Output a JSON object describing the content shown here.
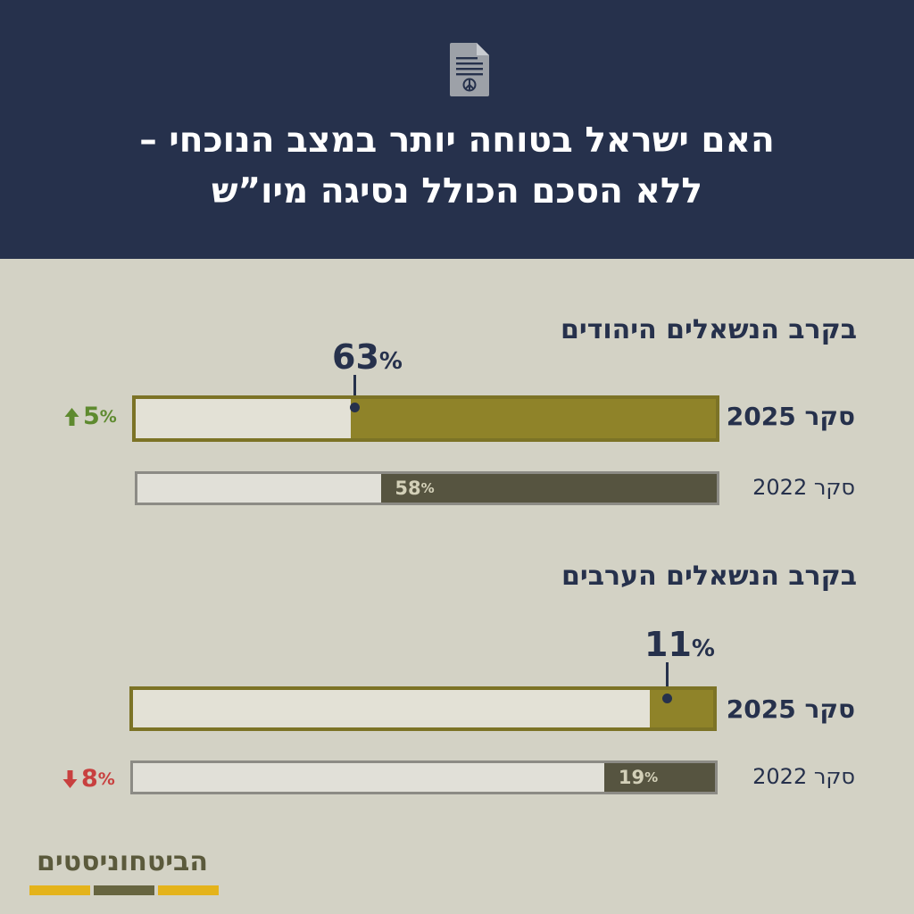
{
  "header": {
    "icon": "peace-document-icon",
    "title_line_1": "האם ישראל בטוחה יותר במצב הנוכחי –",
    "title_line_2": "ללא הסכם הכולל נסיגה מיו”ש"
  },
  "chart_data": [
    {
      "type": "bar",
      "title": "בקרב הנשאלים היהודים",
      "categories": [
        "סקר 2025",
        "סקר 2022"
      ],
      "values": [
        63,
        58
      ],
      "value_labels": [
        "63",
        "58"
      ],
      "unit": "%",
      "change": {
        "direction": "up",
        "value": 5,
        "label": "5",
        "unit": "%",
        "color": "#5e8a2f"
      },
      "xlim": [
        0,
        100
      ]
    },
    {
      "type": "bar",
      "title": "בקרב הנשאלים הערבים",
      "categories": [
        "סקר 2025",
        "סקר 2022"
      ],
      "values": [
        11,
        19
      ],
      "value_labels": [
        "11",
        "19"
      ],
      "unit": "%",
      "change": {
        "direction": "down",
        "value": 8,
        "label": "8",
        "unit": "%",
        "color": "#c8403f"
      },
      "xlim": [
        0,
        100
      ]
    }
  ],
  "logo": {
    "text": "הביטחוניסטים",
    "stripe_colors": [
      "#e4b31b",
      "#676540",
      "#e4b31b"
    ]
  },
  "colors": {
    "header_bg": "#26314c",
    "page_bg": "#d3d2c5",
    "fill_2025": "#8f8329",
    "fill_2022": "#565440"
  }
}
